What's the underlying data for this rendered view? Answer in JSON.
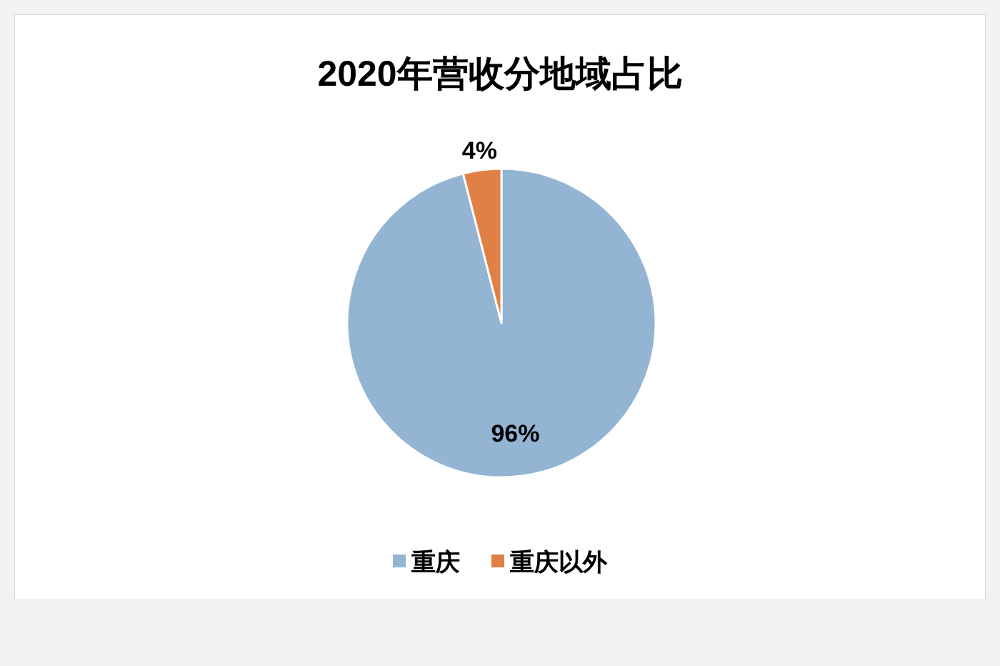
{
  "chart_data": {
    "type": "pie",
    "title": "2020年营收分地域占比",
    "categories": [
      "重庆",
      "重庆以外"
    ],
    "values": [
      96,
      4
    ],
    "colors": [
      "#93b4d3",
      "#e08044"
    ],
    "value_labels": [
      "96%",
      "4%"
    ],
    "legend": "bottom"
  }
}
